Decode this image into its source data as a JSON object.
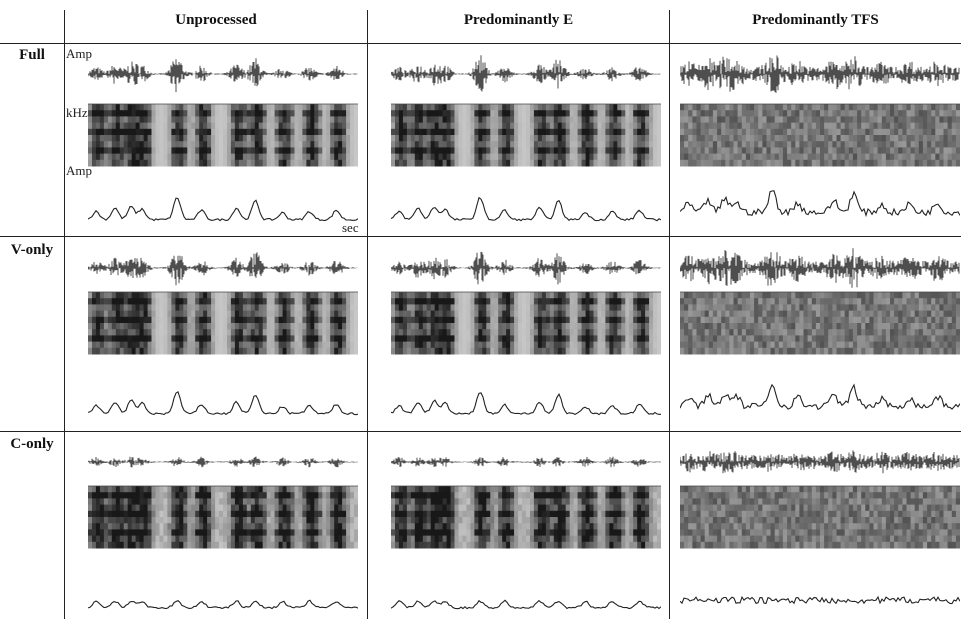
{
  "columns": [
    "Unprocessed",
    "Predominantly E",
    "Predominantly TFS"
  ],
  "rows": [
    "Full",
    "V-only",
    "C-only"
  ],
  "axis_labels": {
    "amp_top": "Amp",
    "khz": "kHz",
    "amp_bottom": "Amp",
    "sec": "sec"
  },
  "panel_styles": {
    "Full": {
      "Unprocessed": "clean",
      "Predominantly E": "clean",
      "Predominantly TFS": "noisy"
    },
    "V-only": {
      "Unprocessed": "vowel",
      "Predominantly E": "vowel",
      "Predominantly TFS": "vowel-noisy"
    },
    "C-only": {
      "Unprocessed": "cons",
      "Predominantly E": "cons",
      "Predominantly TFS": "cons-noisy"
    }
  },
  "colors": {
    "ink": "#222222",
    "spec_dark": "#2a2a2a",
    "spec_mid": "#7a7a7a",
    "spec_light": "#d8d8d8"
  }
}
